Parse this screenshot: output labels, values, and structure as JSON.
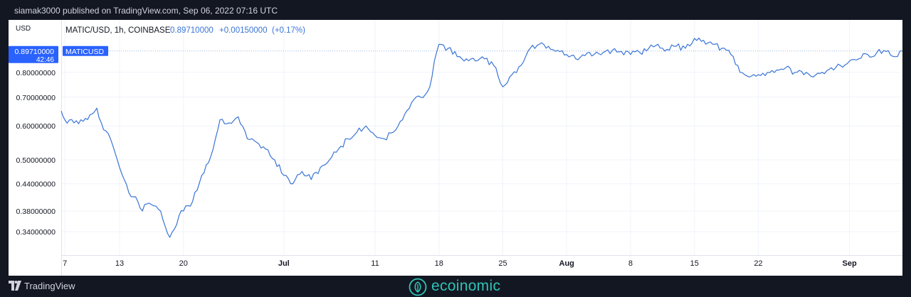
{
  "header": {
    "publisher_line": "siamak3000 published on TradingView.com, Sep 06, 2022 07:16 UTC"
  },
  "footer": {
    "brand": "TradingView",
    "watermark": "ecoinomic"
  },
  "colors": {
    "line": "#3a74d6",
    "accent": "#2962ff",
    "background": "#131722",
    "watermark": "#2ec4b6"
  },
  "chart_data": {
    "type": "line",
    "title": "MATIC/USD, 1h, COINBASE",
    "stats": {
      "last": "0.89710000",
      "change": "+0.00150000",
      "change_pct": "(+0.17%)"
    },
    "price_axis": {
      "unit": "USD",
      "ticks": [
        "0.80000000",
        "0.70000000",
        "0.60000000",
        "0.50000000",
        "0.44000000",
        "0.38000000",
        "0.34000000"
      ],
      "scale": "log",
      "ylim": [
        0.3,
        1.06
      ]
    },
    "last_price_label": {
      "value": "0.89710000",
      "countdown": "42:46",
      "series_label": "MATICUSD"
    },
    "time_axis": {
      "ticks": [
        "7",
        "13",
        "20",
        "Jul",
        "11",
        "18",
        "25",
        "Aug",
        "8",
        "15",
        "22",
        "Sep"
      ],
      "tick_days": [
        7,
        13,
        20,
        31,
        41,
        48,
        55,
        62,
        69,
        76,
        83,
        93
      ],
      "xlim": [
        6.6,
        98.8
      ]
    },
    "series": [
      {
        "x": [
          6.6,
          7,
          8,
          9,
          10,
          10.5,
          11,
          12,
          12.5,
          13,
          13.5,
          14,
          14.5,
          15,
          15.5,
          16,
          17,
          17.5,
          18,
          18.5,
          19,
          19.5,
          20,
          21,
          22,
          23,
          24,
          25,
          26,
          27,
          28,
          29,
          30,
          31,
          32,
          33,
          34,
          35,
          36,
          37,
          38,
          39,
          40,
          41,
          42,
          43,
          44,
          45,
          46,
          47,
          47.5,
          48,
          49,
          50,
          51,
          52,
          53,
          54,
          55,
          56,
          57,
          57.5,
          58,
          59,
          60,
          61,
          62,
          63,
          64,
          65,
          66,
          67,
          68,
          69,
          70,
          71,
          72,
          73,
          74,
          75,
          76,
          77,
          78,
          79,
          80,
          81,
          82,
          83,
          84,
          85,
          86,
          87,
          88,
          89,
          90,
          91,
          92,
          93,
          94,
          95,
          96,
          97,
          98,
          98.8
        ],
        "y": [
          0.65,
          0.62,
          0.61,
          0.615,
          0.64,
          0.66,
          0.61,
          0.56,
          0.52,
          0.48,
          0.45,
          0.42,
          0.41,
          0.4,
          0.38,
          0.395,
          0.39,
          0.38,
          0.35,
          0.33,
          0.345,
          0.37,
          0.38,
          0.4,
          0.46,
          0.51,
          0.62,
          0.61,
          0.63,
          0.56,
          0.55,
          0.53,
          0.5,
          0.46,
          0.44,
          0.47,
          0.45,
          0.48,
          0.5,
          0.53,
          0.56,
          0.58,
          0.6,
          0.57,
          0.56,
          0.58,
          0.62,
          0.68,
          0.7,
          0.74,
          0.85,
          0.93,
          0.91,
          0.87,
          0.86,
          0.85,
          0.86,
          0.83,
          0.74,
          0.79,
          0.83,
          0.87,
          0.91,
          0.93,
          0.92,
          0.9,
          0.88,
          0.86,
          0.875,
          0.88,
          0.89,
          0.9,
          0.895,
          0.88,
          0.89,
          0.91,
          0.93,
          0.905,
          0.92,
          0.91,
          0.96,
          0.95,
          0.93,
          0.91,
          0.88,
          0.8,
          0.78,
          0.79,
          0.8,
          0.81,
          0.82,
          0.8,
          0.79,
          0.78,
          0.8,
          0.82,
          0.83,
          0.85,
          0.86,
          0.88,
          0.89,
          0.895,
          0.87,
          0.8971
        ]
      }
    ]
  }
}
